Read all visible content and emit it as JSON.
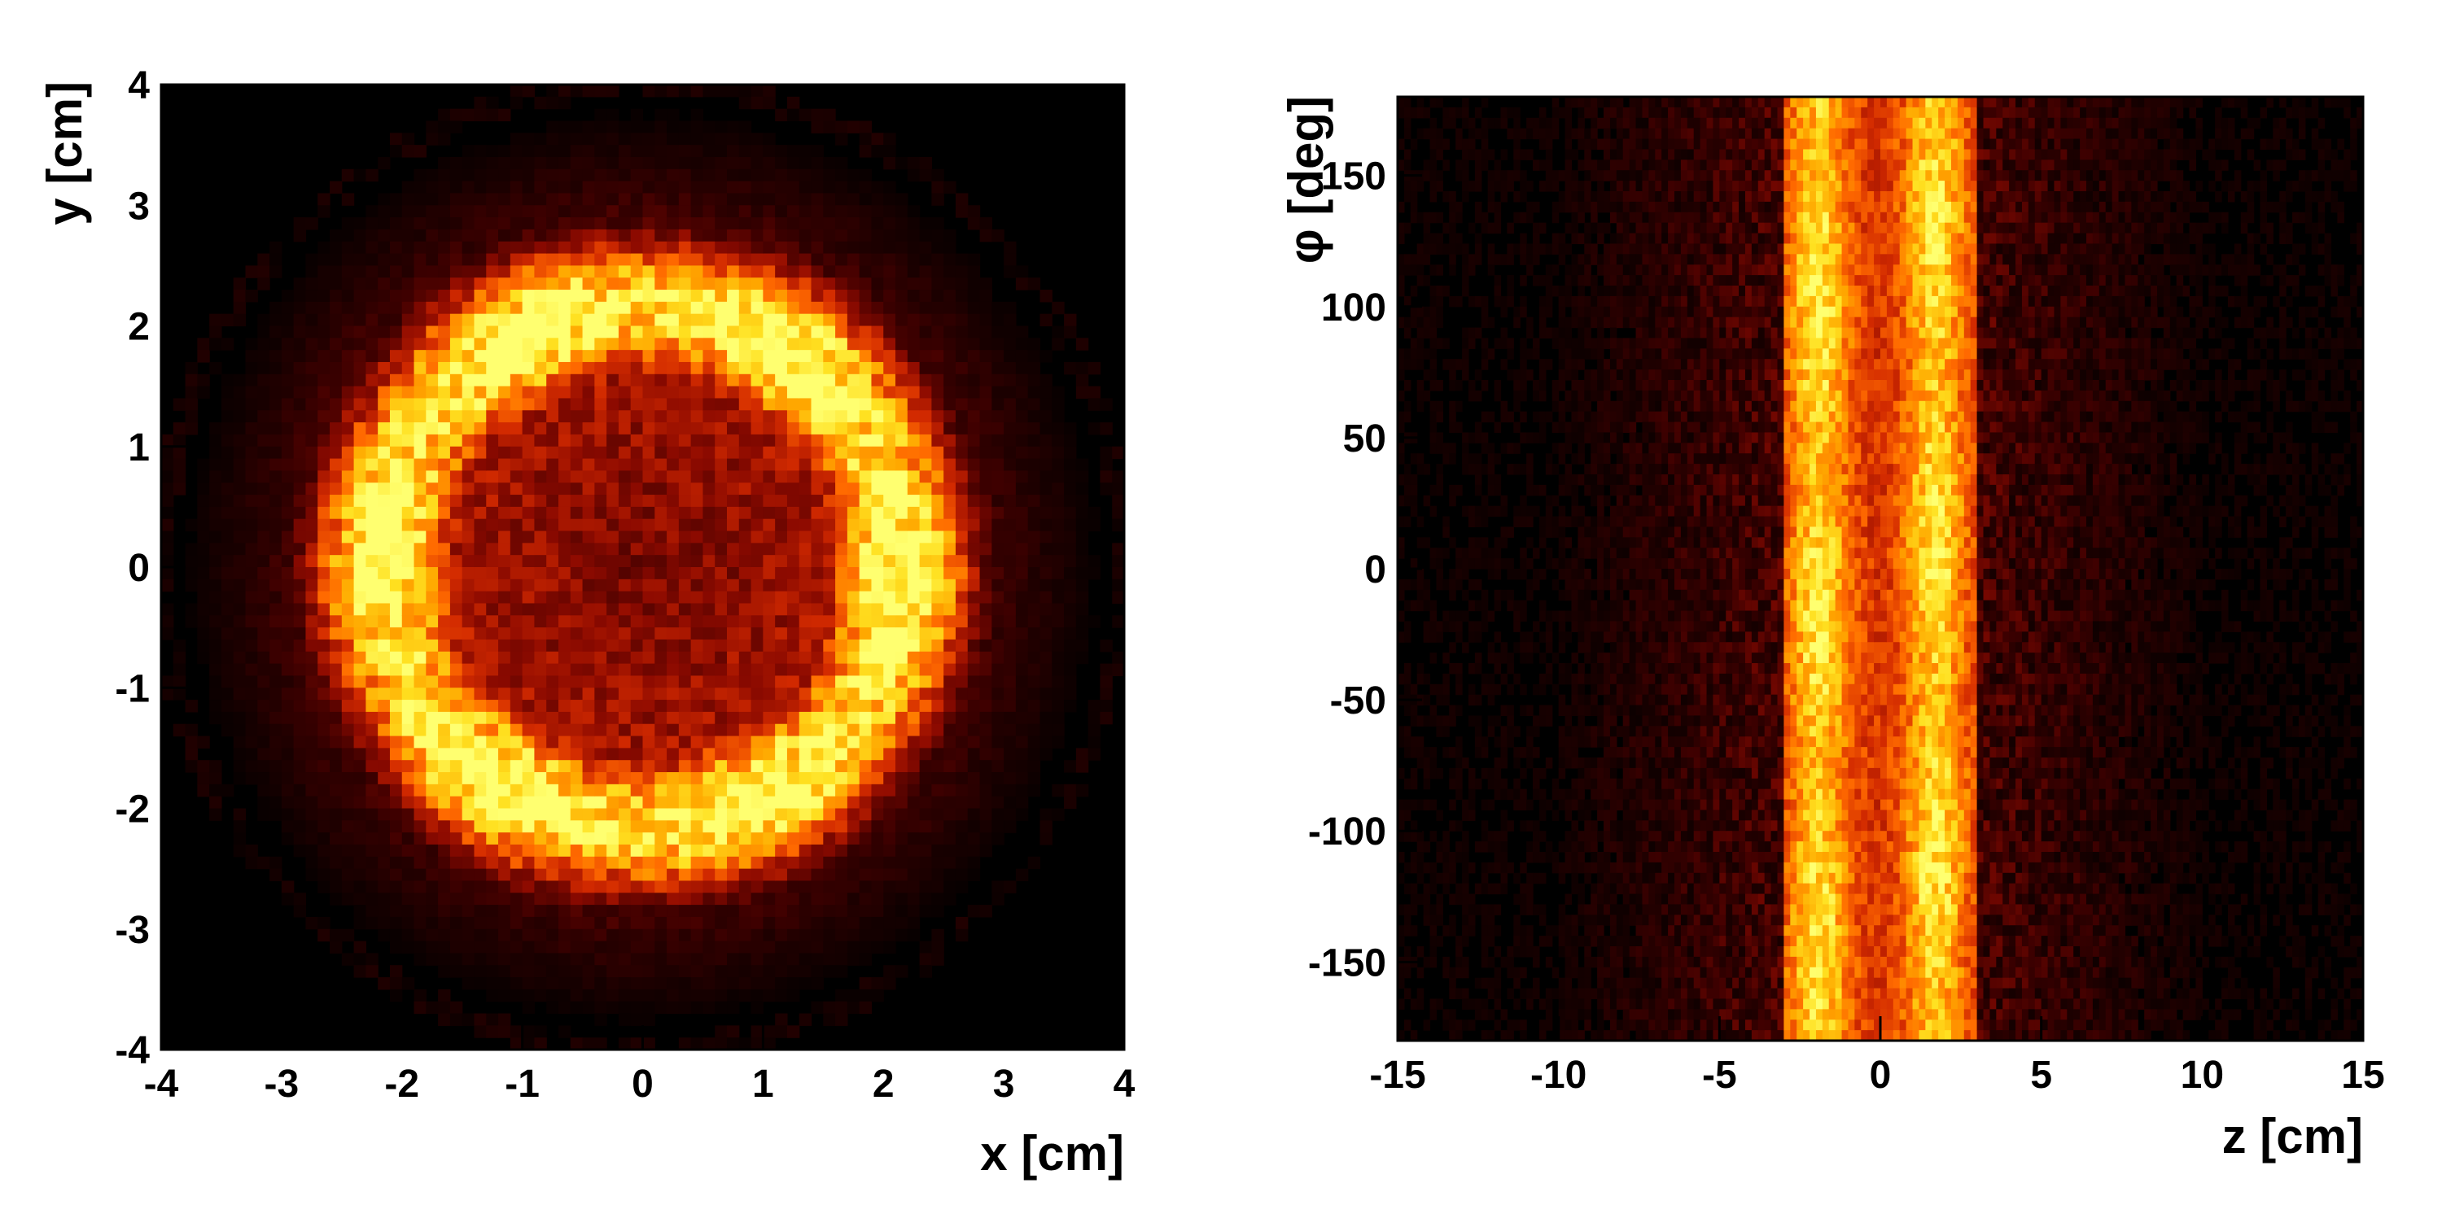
{
  "chart_data": [
    {
      "type": "heatmap",
      "title": "",
      "xlabel": "x [cm]",
      "ylabel": "y [cm]",
      "xlim": [
        -4,
        4
      ],
      "ylim": [
        -4,
        4
      ],
      "xticks": [
        -4,
        -3,
        -2,
        -1,
        0,
        1,
        2,
        3,
        4
      ],
      "yticks": [
        -4,
        -3,
        -2,
        -1,
        0,
        1,
        2,
        3,
        4
      ],
      "grid": false,
      "colormap": [
        "#000000",
        "#3c0000",
        "#8c0a00",
        "#d22a00",
        "#ff6a00",
        "#ffa800",
        "#ffe020",
        "#ffff70"
      ],
      "bins": [
        80,
        80
      ],
      "distribution": {
        "shape": "ring",
        "center": [
          0,
          0
        ],
        "ring_radius": 2.15,
        "ring_width": 0.55,
        "ring_intensity": 0.95,
        "inner_fill_intensity": 0.36,
        "outer_halo_radius": 3.9,
        "outer_halo_intensity": 0.25,
        "azimuthal_lobes": 6
      }
    },
    {
      "type": "heatmap",
      "title": "",
      "xlabel": "z [cm]",
      "ylabel": "φ [deg]",
      "xlim": [
        -15,
        15
      ],
      "ylim": [
        -180,
        180
      ],
      "xticks": [
        -15,
        -10,
        -5,
        0,
        5,
        10,
        15
      ],
      "yticks": [
        -150,
        -100,
        -50,
        0,
        50,
        100,
        150
      ],
      "grid": false,
      "colormap": [
        "#000000",
        "#3c0000",
        "#8c0a00",
        "#d22a00",
        "#ff6a00",
        "#ffa800",
        "#ffe020",
        "#ffff70"
      ],
      "bins": [
        150,
        90
      ],
      "distribution": {
        "shape": "vertical-band",
        "band_z_range": [
          -3,
          3
        ],
        "band_intensity": 0.9,
        "sub_bands_z": [
          -1.9,
          1.7
        ],
        "background_z_halfwidth": 10,
        "background_intensity": 0.18
      }
    }
  ]
}
